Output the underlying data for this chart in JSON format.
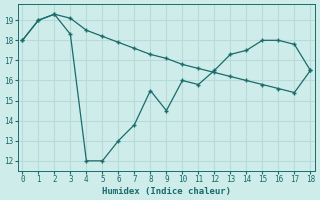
{
  "xlabel": "Humidex (Indice chaleur)",
  "background_color": "#ceecea",
  "grid_color": "#b8dbd9",
  "line_color": "#1a6b6b",
  "line1_x": [
    0,
    1,
    2,
    3,
    4,
    5,
    6,
    7,
    8,
    9,
    10,
    11,
    12,
    13,
    14,
    15,
    16,
    17,
    18
  ],
  "line1_y": [
    18.0,
    19.0,
    19.3,
    18.3,
    12.0,
    12.0,
    13.0,
    13.8,
    15.5,
    14.5,
    16.0,
    15.8,
    16.5,
    17.3,
    17.5,
    18.0,
    18.0,
    17.8,
    16.5
  ],
  "line2_x": [
    0,
    1,
    2,
    3,
    4,
    5,
    6,
    7,
    8,
    9,
    10,
    11,
    12,
    13,
    14,
    15,
    16,
    17,
    18
  ],
  "line2_y": [
    18.0,
    19.0,
    19.3,
    19.1,
    18.5,
    18.2,
    17.9,
    17.6,
    17.3,
    17.1,
    16.8,
    16.6,
    16.4,
    16.2,
    16.0,
    15.8,
    15.6,
    15.4,
    16.5
  ],
  "xlim": [
    -0.3,
    18.3
  ],
  "ylim": [
    11.5,
    19.8
  ],
  "yticks": [
    12,
    13,
    14,
    15,
    16,
    17,
    18,
    19
  ],
  "xticks": [
    0,
    1,
    2,
    3,
    4,
    5,
    6,
    7,
    8,
    9,
    10,
    11,
    12,
    13,
    14,
    15,
    16,
    17,
    18
  ]
}
